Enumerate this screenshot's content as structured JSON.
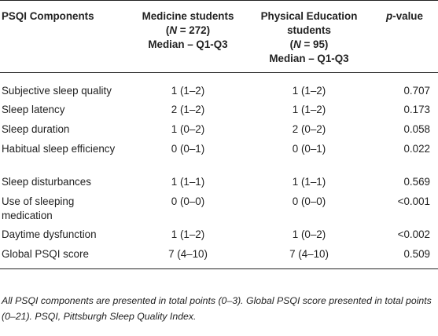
{
  "table": {
    "headers": {
      "component": "PSQI Components",
      "medicine_line1": "Medicine students",
      "medicine_n_open": "(",
      "medicine_n_var": "N",
      "medicine_n_value": " = 272)",
      "medicine_line3": "Median – Q1-Q3",
      "pe_line1": "Physical Education",
      "pe_line2": "students",
      "pe_n_open": "(",
      "pe_n_var": "N",
      "pe_n_value": " = 95)",
      "pe_line4": "Median – Q1-Q3",
      "pvalue_p": "p",
      "pvalue_rest": "-value"
    },
    "rows": [
      {
        "label": "Subjective sleep quality",
        "medicine": "1 (1–2)",
        "pe": "1 (1–2)",
        "p": "0.707"
      },
      {
        "label": "Sleep latency",
        "medicine": "2 (1–2)",
        "pe": "1 (1–2)",
        "p": "0.173"
      },
      {
        "label": "Sleep duration",
        "medicine": "1 (0–2)",
        "pe": "2 (0–2)",
        "p": "0.058"
      },
      {
        "label": "Habitual sleep efficiency",
        "medicine": "0 (0–1)",
        "pe": "0 (0–1)",
        "p": "0.022"
      },
      {
        "label": "Sleep disturbances",
        "medicine": "1 (1–1)",
        "pe": "1 (1–1)",
        "p": "0.569"
      },
      {
        "label": "Use of sleeping medication",
        "medicine": "0 (0–0)",
        "pe": "0 (0–0)",
        "p": "<0.001"
      },
      {
        "label": "Daytime dysfunction",
        "medicine": "1 (1–2)",
        "pe": "1 (0–2)",
        "p": "<0.002"
      },
      {
        "label": "Global PSQI score",
        "medicine": "7 (4–10)",
        "pe": "7 (4–10)",
        "p": "0.509"
      }
    ]
  },
  "footnote": "All PSQI components are presented in total points (0–3). Global PSQI score presented in total points (0–21). PSQI, Pittsburgh Sleep Quality Index."
}
